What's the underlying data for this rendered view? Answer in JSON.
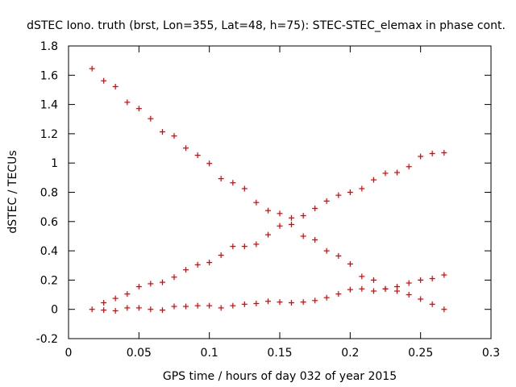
{
  "chart_data": {
    "type": "scatter",
    "title": "dSTEC Iono. truth (brst, Lon=355, Lat=48, h=75): STEC-STEC_elemax in phase cont.",
    "xlabel": "GPS time / hours of day 032 of year 2015",
    "ylabel": "dSTEC  / TECUs",
    "xlim": [
      0,
      0.3
    ],
    "ylim": [
      -0.2,
      1.8
    ],
    "xticks": [
      "0",
      "0.05",
      "0.1",
      "0.15",
      "0.2",
      "0.25",
      "0.3"
    ],
    "yticks": [
      "-0.2",
      "0",
      "0.2",
      "0.4",
      "0.6",
      "0.8",
      "1",
      "1.2",
      "1.4",
      "1.6",
      "1.8"
    ],
    "grid": false,
    "legend": "none",
    "marker_color": "#e00000",
    "series": [
      {
        "points": [
          [
            0.0167,
            1.645
          ],
          [
            0.025,
            1.562
          ],
          [
            0.0333,
            1.522
          ],
          [
            0.0417,
            1.415
          ],
          [
            0.05,
            1.372
          ],
          [
            0.0583,
            1.303
          ],
          [
            0.0667,
            1.213
          ],
          [
            0.075,
            1.185
          ],
          [
            0.0833,
            1.102
          ],
          [
            0.0917,
            1.053
          ],
          [
            0.1,
            0.997
          ],
          [
            0.1083,
            0.893
          ],
          [
            0.1167,
            0.865
          ],
          [
            0.125,
            0.825
          ],
          [
            0.1333,
            0.73
          ],
          [
            0.1417,
            0.675
          ],
          [
            0.15,
            0.655
          ],
          [
            0.1583,
            0.625
          ],
          [
            0.1667,
            0.5
          ],
          [
            0.175,
            0.475
          ],
          [
            0.1833,
            0.4
          ],
          [
            0.1917,
            0.365
          ],
          [
            0.2,
            0.31
          ],
          [
            0.2083,
            0.225
          ],
          [
            0.2167,
            0.2
          ],
          [
            0.225,
            0.14
          ],
          [
            0.2333,
            0.125
          ],
          [
            0.2417,
            0.1
          ],
          [
            0.25,
            0.07
          ],
          [
            0.2583,
            0.035
          ],
          [
            0.2667,
            0.0
          ]
        ]
      },
      {
        "points": [
          [
            0.025,
            0.045
          ],
          [
            0.0333,
            0.075
          ],
          [
            0.0417,
            0.105
          ],
          [
            0.05,
            0.155
          ],
          [
            0.0583,
            0.175
          ],
          [
            0.0667,
            0.185
          ],
          [
            0.075,
            0.22
          ],
          [
            0.0833,
            0.27
          ],
          [
            0.0917,
            0.305
          ],
          [
            0.1,
            0.32
          ],
          [
            0.1083,
            0.37
          ],
          [
            0.1167,
            0.43
          ],
          [
            0.125,
            0.43
          ],
          [
            0.1333,
            0.445
          ],
          [
            0.1417,
            0.51
          ],
          [
            0.15,
            0.57
          ],
          [
            0.1583,
            0.58
          ],
          [
            0.1667,
            0.64
          ],
          [
            0.175,
            0.69
          ],
          [
            0.1833,
            0.74
          ],
          [
            0.1917,
            0.78
          ],
          [
            0.2,
            0.8
          ],
          [
            0.2083,
            0.825
          ],
          [
            0.2167,
            0.885
          ],
          [
            0.225,
            0.93
          ],
          [
            0.2333,
            0.935
          ],
          [
            0.2417,
            0.975
          ],
          [
            0.25,
            1.045
          ],
          [
            0.2583,
            1.065
          ],
          [
            0.2667,
            1.07
          ]
        ]
      },
      {
        "points": [
          [
            0.0167,
            0.0
          ],
          [
            0.025,
            -0.005
          ],
          [
            0.0333,
            -0.01
          ],
          [
            0.0417,
            0.01
          ],
          [
            0.05,
            0.01
          ],
          [
            0.0583,
            0.0
          ],
          [
            0.0667,
            -0.005
          ],
          [
            0.075,
            0.02
          ],
          [
            0.0833,
            0.02
          ],
          [
            0.0917,
            0.025
          ],
          [
            0.1,
            0.025
          ],
          [
            0.1083,
            0.01
          ],
          [
            0.1167,
            0.025
          ],
          [
            0.125,
            0.035
          ],
          [
            0.1333,
            0.04
          ],
          [
            0.1417,
            0.055
          ],
          [
            0.15,
            0.05
          ],
          [
            0.1583,
            0.045
          ],
          [
            0.1667,
            0.05
          ],
          [
            0.175,
            0.06
          ],
          [
            0.1833,
            0.08
          ],
          [
            0.1917,
            0.105
          ],
          [
            0.2,
            0.135
          ],
          [
            0.2083,
            0.14
          ],
          [
            0.2167,
            0.125
          ],
          [
            0.225,
            0.14
          ],
          [
            0.2333,
            0.155
          ],
          [
            0.2417,
            0.18
          ],
          [
            0.25,
            0.2
          ],
          [
            0.2583,
            0.21
          ],
          [
            0.2667,
            0.235
          ]
        ]
      }
    ]
  }
}
